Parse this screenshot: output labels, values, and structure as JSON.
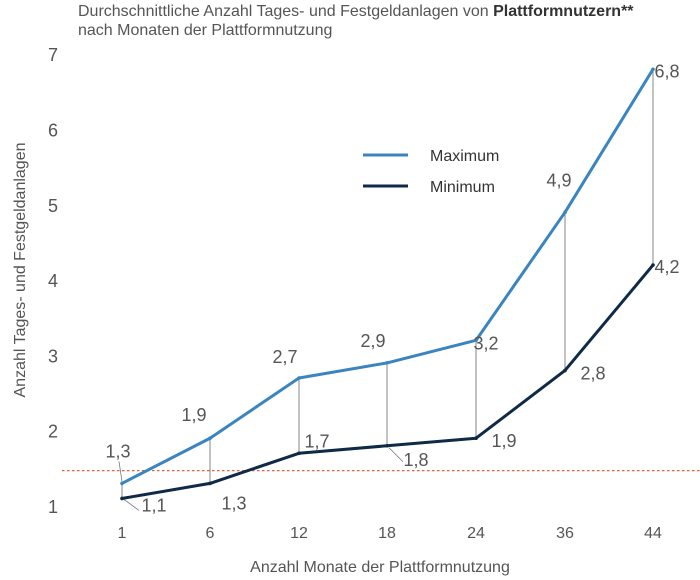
{
  "title": {
    "line1_prefix": "Durchschnittliche Anzahl Tages- und Festgeldanlagen von ",
    "line1_bold": "Plattformnutzern**",
    "line2": "nach Monaten der Plattformnutzung"
  },
  "colors": {
    "maximum": "#3a85bf",
    "minimum": "#0f2a47",
    "reference": "#e0603a",
    "connector": "#777777",
    "text": "#555555"
  },
  "chart_data": {
    "type": "line",
    "xlabel": "Anzahl Monate der Plattformnutzung",
    "ylabel": "Anzahl Tages- und Festgeldanlagen",
    "categories": [
      "1",
      "6",
      "12",
      "18",
      "24",
      "36",
      "44"
    ],
    "ylim": [
      1,
      7
    ],
    "yticks": [
      "1",
      "2",
      "3",
      "4",
      "5",
      "6",
      "7"
    ],
    "legend_position": "center",
    "series": [
      {
        "name": "Maximum",
        "values": [
          1.3,
          1.9,
          2.7,
          2.9,
          3.2,
          4.9,
          6.8
        ],
        "labels": [
          "1,3",
          "1,9",
          "2,7",
          "2,9",
          "3,2",
          "4,9",
          "6,8"
        ]
      },
      {
        "name": "Minimum",
        "values": [
          1.1,
          1.3,
          1.7,
          1.8,
          1.9,
          2.8,
          4.2
        ],
        "labels": [
          "1,1",
          "1,3",
          "1,7",
          "1,8",
          "1,9",
          "2,8",
          "4,2"
        ]
      }
    ],
    "reference_line": {
      "value": 1.47,
      "style": "dotted"
    }
  }
}
